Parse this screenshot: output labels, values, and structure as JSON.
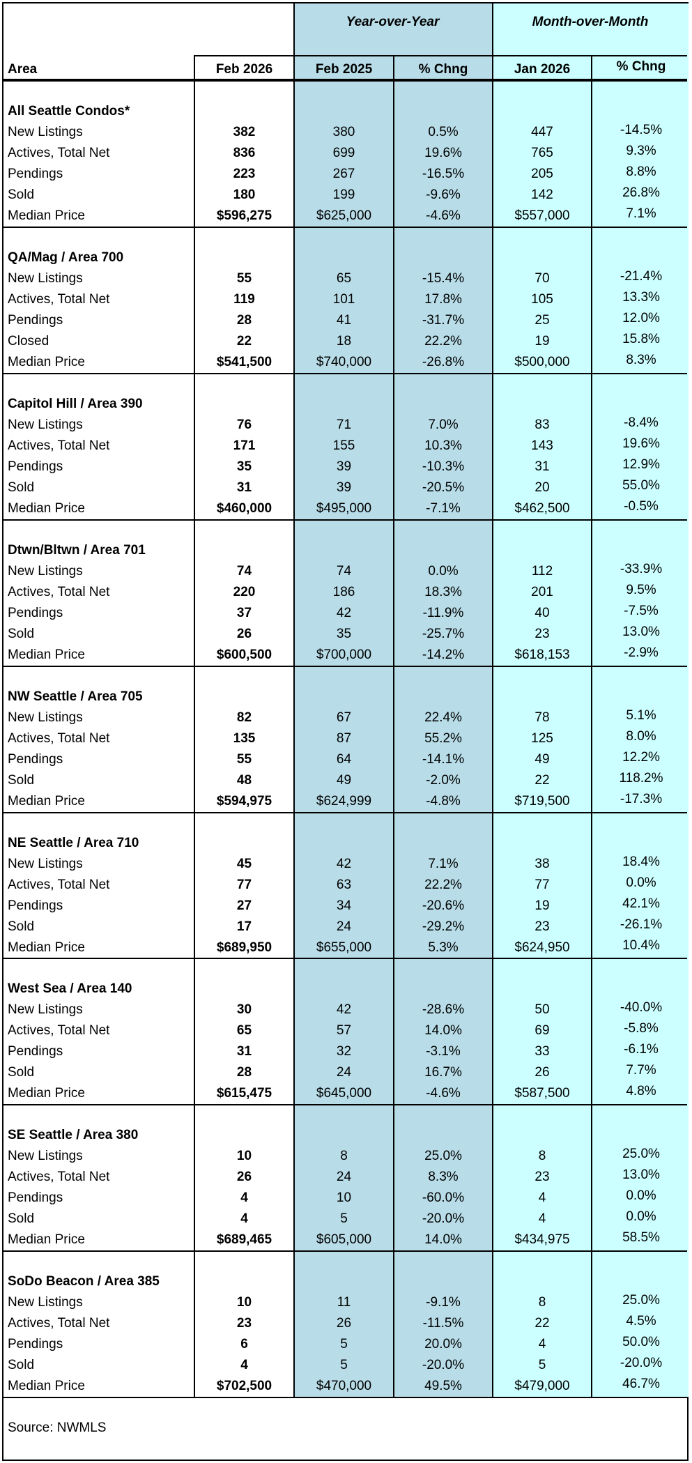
{
  "header": {
    "group_yoy": "Year-over-Year",
    "group_mom": "Month-over-Month",
    "columns": {
      "area": "Area",
      "current": "Feb 2026",
      "yoy_prior": "Feb 2025",
      "yoy_pct": "% Chng",
      "mom_prior": "Jan 2026",
      "mom_pct": "% Chng"
    }
  },
  "colors": {
    "yoy_fill": "#b8dde8",
    "mom_fill": "#ccffff",
    "border": "#000000"
  },
  "sections": [
    {
      "title": "All Seattle Condos*",
      "rows": [
        {
          "label": "New Listings",
          "cur": "382",
          "yoy_prior": "380",
          "yoy_pct": "0.5%",
          "mom_prior": "447",
          "mom_pct": "-14.5%"
        },
        {
          "label": "Actives, Total Net",
          "cur": "836",
          "yoy_prior": "699",
          "yoy_pct": "19.6%",
          "mom_prior": "765",
          "mom_pct": "9.3%"
        },
        {
          "label": "Pendings",
          "cur": "223",
          "yoy_prior": "267",
          "yoy_pct": "-16.5%",
          "mom_prior": "205",
          "mom_pct": "8.8%"
        },
        {
          "label": "Sold",
          "cur": "180",
          "yoy_prior": "199",
          "yoy_pct": "-9.6%",
          "mom_prior": "142",
          "mom_pct": "26.8%"
        },
        {
          "label": "Median Price",
          "cur": "$596,275",
          "yoy_prior": "$625,000",
          "yoy_pct": "-4.6%",
          "mom_prior": "$557,000",
          "mom_pct": "7.1%"
        }
      ]
    },
    {
      "title": "QA/Mag  / Area 700",
      "rows": [
        {
          "label": "New Listings",
          "cur": "55",
          "yoy_prior": "65",
          "yoy_pct": "-15.4%",
          "mom_prior": "70",
          "mom_pct": "-21.4%"
        },
        {
          "label": "Actives, Total Net",
          "cur": "119",
          "yoy_prior": "101",
          "yoy_pct": "17.8%",
          "mom_prior": "105",
          "mom_pct": "13.3%"
        },
        {
          "label": "Pendings",
          "cur": "28",
          "yoy_prior": "41",
          "yoy_pct": "-31.7%",
          "mom_prior": "25",
          "mom_pct": "12.0%"
        },
        {
          "label": "Closed",
          "cur": "22",
          "yoy_prior": "18",
          "yoy_pct": "22.2%",
          "mom_prior": "19",
          "mom_pct": "15.8%"
        },
        {
          "label": "Median Price",
          "cur": "$541,500",
          "yoy_prior": "$740,000",
          "yoy_pct": "-26.8%",
          "mom_prior": "$500,000",
          "mom_pct": "8.3%"
        }
      ]
    },
    {
      "title": "Capitol Hill / Area 390",
      "rows": [
        {
          "label": "New Listings",
          "cur": "76",
          "yoy_prior": "71",
          "yoy_pct": "7.0%",
          "mom_prior": "83",
          "mom_pct": "-8.4%"
        },
        {
          "label": "Actives, Total Net",
          "cur": "171",
          "yoy_prior": "155",
          "yoy_pct": "10.3%",
          "mom_prior": "143",
          "mom_pct": "19.6%"
        },
        {
          "label": "Pendings",
          "cur": "35",
          "yoy_prior": "39",
          "yoy_pct": "-10.3%",
          "mom_prior": "31",
          "mom_pct": "12.9%"
        },
        {
          "label": "Sold",
          "cur": "31",
          "yoy_prior": "39",
          "yoy_pct": "-20.5%",
          "mom_prior": "20",
          "mom_pct": "55.0%"
        },
        {
          "label": "Median Price",
          "cur": "$460,000",
          "yoy_prior": "$495,000",
          "yoy_pct": "-7.1%",
          "mom_prior": "$462,500",
          "mom_pct": "-0.5%"
        }
      ]
    },
    {
      "title": "Dtwn/Bltwn / Area 701",
      "rows": [
        {
          "label": "New Listings",
          "cur": "74",
          "yoy_prior": "74",
          "yoy_pct": "0.0%",
          "mom_prior": "112",
          "mom_pct": "-33.9%"
        },
        {
          "label": "Actives, Total Net",
          "cur": "220",
          "yoy_prior": "186",
          "yoy_pct": "18.3%",
          "mom_prior": "201",
          "mom_pct": "9.5%"
        },
        {
          "label": "Pendings",
          "cur": "37",
          "yoy_prior": "42",
          "yoy_pct": "-11.9%",
          "mom_prior": "40",
          "mom_pct": "-7.5%"
        },
        {
          "label": "Sold",
          "cur": "26",
          "yoy_prior": "35",
          "yoy_pct": "-25.7%",
          "mom_prior": "23",
          "mom_pct": "13.0%"
        },
        {
          "label": "Median Price",
          "cur": "$600,500",
          "yoy_prior": "$700,000",
          "yoy_pct": "-14.2%",
          "mom_prior": "$618,153",
          "mom_pct": "-2.9%"
        }
      ]
    },
    {
      "title": "NW Seattle / Area 705",
      "rows": [
        {
          "label": "New Listings",
          "cur": "82",
          "yoy_prior": "67",
          "yoy_pct": "22.4%",
          "mom_prior": "78",
          "mom_pct": "5.1%"
        },
        {
          "label": "Actives, Total Net",
          "cur": "135",
          "yoy_prior": "87",
          "yoy_pct": "55.2%",
          "mom_prior": "125",
          "mom_pct": "8.0%"
        },
        {
          "label": "Pendings",
          "cur": "55",
          "yoy_prior": "64",
          "yoy_pct": "-14.1%",
          "mom_prior": "49",
          "mom_pct": "12.2%"
        },
        {
          "label": "Sold",
          "cur": "48",
          "yoy_prior": "49",
          "yoy_pct": "-2.0%",
          "mom_prior": "22",
          "mom_pct": "118.2%"
        },
        {
          "label": "Median Price",
          "cur": "$594,975",
          "yoy_prior": "$624,999",
          "yoy_pct": "-4.8%",
          "mom_prior": "$719,500",
          "mom_pct": "-17.3%"
        }
      ]
    },
    {
      "title": "NE Seattle  / Area 710",
      "rows": [
        {
          "label": "New Listings",
          "cur": "45",
          "yoy_prior": "42",
          "yoy_pct": "7.1%",
          "mom_prior": "38",
          "mom_pct": "18.4%"
        },
        {
          "label": "Actives, Total Net",
          "cur": "77",
          "yoy_prior": "63",
          "yoy_pct": "22.2%",
          "mom_prior": "77",
          "mom_pct": "0.0%"
        },
        {
          "label": "Pendings",
          "cur": "27",
          "yoy_prior": "34",
          "yoy_pct": "-20.6%",
          "mom_prior": "19",
          "mom_pct": "42.1%"
        },
        {
          "label": "Sold",
          "cur": "17",
          "yoy_prior": "24",
          "yoy_pct": "-29.2%",
          "mom_prior": "23",
          "mom_pct": "-26.1%"
        },
        {
          "label": "Median Price",
          "cur": "$689,950",
          "yoy_prior": "$655,000",
          "yoy_pct": "5.3%",
          "mom_prior": "$624,950",
          "mom_pct": "10.4%"
        }
      ]
    },
    {
      "title": "West Sea / Area 140",
      "rows": [
        {
          "label": "New Listings",
          "cur": "30",
          "yoy_prior": "42",
          "yoy_pct": "-28.6%",
          "mom_prior": "50",
          "mom_pct": "-40.0%"
        },
        {
          "label": "Actives, Total Net",
          "cur": "65",
          "yoy_prior": "57",
          "yoy_pct": "14.0%",
          "mom_prior": "69",
          "mom_pct": "-5.8%"
        },
        {
          "label": "Pendings",
          "cur": "31",
          "yoy_prior": "32",
          "yoy_pct": "-3.1%",
          "mom_prior": "33",
          "mom_pct": "-6.1%"
        },
        {
          "label": "Sold",
          "cur": "28",
          "yoy_prior": "24",
          "yoy_pct": "16.7%",
          "mom_prior": "26",
          "mom_pct": "7.7%"
        },
        {
          "label": "Median Price",
          "cur": "$615,475",
          "yoy_prior": "$645,000",
          "yoy_pct": "-4.6%",
          "mom_prior": "$587,500",
          "mom_pct": "4.8%"
        }
      ]
    },
    {
      "title": "SE Seattle / Area 380",
      "rows": [
        {
          "label": "New Listings",
          "cur": "10",
          "yoy_prior": "8",
          "yoy_pct": "25.0%",
          "mom_prior": "8",
          "mom_pct": "25.0%"
        },
        {
          "label": "Actives, Total Net",
          "cur": "26",
          "yoy_prior": "24",
          "yoy_pct": "8.3%",
          "mom_prior": "23",
          "mom_pct": "13.0%"
        },
        {
          "label": "Pendings",
          "cur": "4",
          "yoy_prior": "10",
          "yoy_pct": "-60.0%",
          "mom_prior": "4",
          "mom_pct": "0.0%"
        },
        {
          "label": "Sold",
          "cur": "4",
          "yoy_prior": "5",
          "yoy_pct": "-20.0%",
          "mom_prior": "4",
          "mom_pct": "0.0%"
        },
        {
          "label": "Median Price",
          "cur": "$689,465",
          "yoy_prior": "$605,000",
          "yoy_pct": "14.0%",
          "mom_prior": "$434,975",
          "mom_pct": "58.5%"
        }
      ]
    },
    {
      "title": "SoDo Beacon / Area 385",
      "rows": [
        {
          "label": "New Listings",
          "cur": "10",
          "yoy_prior": "11",
          "yoy_pct": "-9.1%",
          "mom_prior": "8",
          "mom_pct": "25.0%"
        },
        {
          "label": "Actives, Total Net",
          "cur": "23",
          "yoy_prior": "26",
          "yoy_pct": "-11.5%",
          "mom_prior": "22",
          "mom_pct": "4.5%"
        },
        {
          "label": "Pendings",
          "cur": "6",
          "yoy_prior": "5",
          "yoy_pct": "20.0%",
          "mom_prior": "4",
          "mom_pct": "50.0%"
        },
        {
          "label": "Sold",
          "cur": "4",
          "yoy_prior": "5",
          "yoy_pct": "-20.0%",
          "mom_prior": "5",
          "mom_pct": "-20.0%"
        },
        {
          "label": "Median Price",
          "cur": "$702,500",
          "yoy_prior": "$470,000",
          "yoy_pct": "49.5%",
          "mom_prior": "$479,000",
          "mom_pct": "46.7%"
        }
      ]
    }
  ],
  "footer": {
    "source": "Source: NWMLS"
  }
}
